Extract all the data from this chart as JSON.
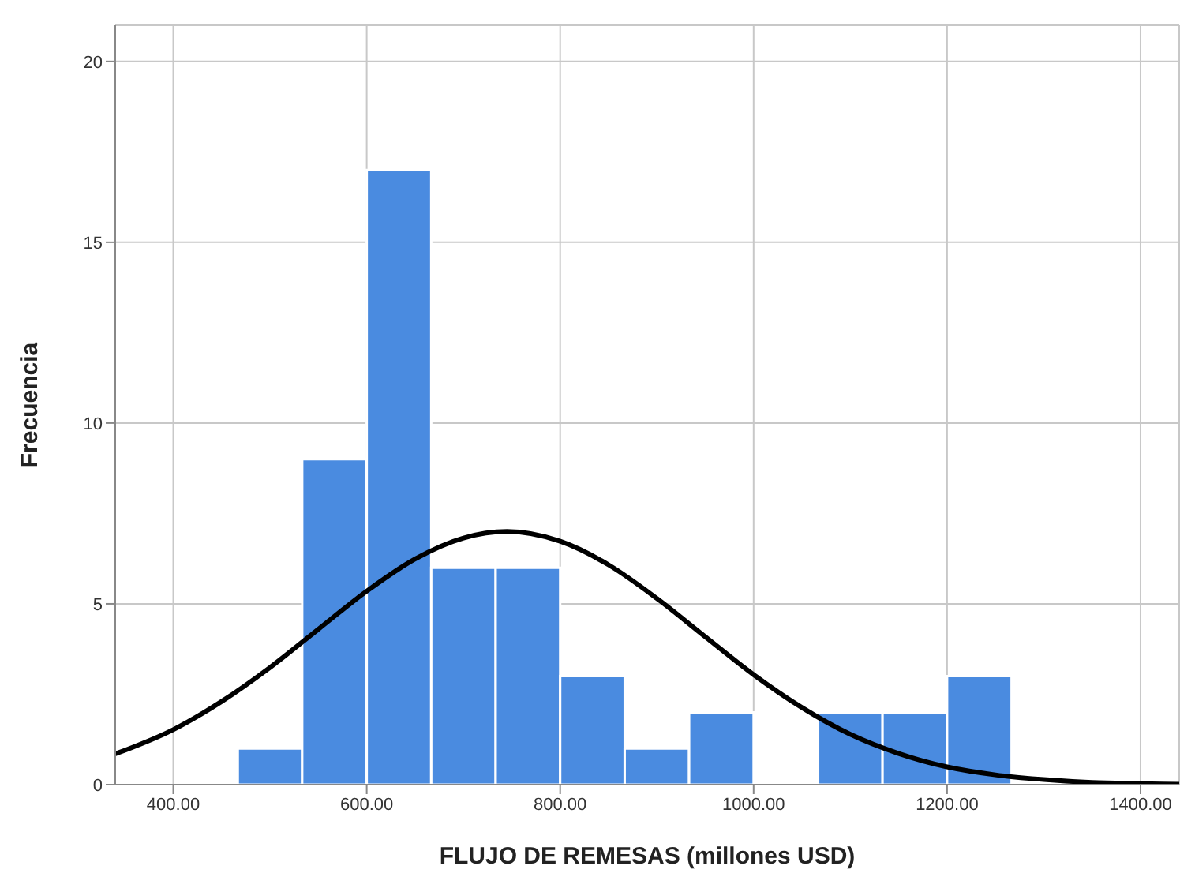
{
  "chart_data": {
    "type": "histogram",
    "xlabel": "FLUJO DE REMESAS (millones USD)",
    "ylabel": "Frecuencia",
    "xlim": [
      340,
      1440
    ],
    "ylim": [
      0,
      21
    ],
    "xticks": [
      {
        "value": 400,
        "label": "400.00"
      },
      {
        "value": 600,
        "label": "600.00"
      },
      {
        "value": 800,
        "label": "800.00"
      },
      {
        "value": 1000,
        "label": "1000.00"
      },
      {
        "value": 1200,
        "label": "1200.00"
      },
      {
        "value": 1400,
        "label": "1400.00"
      }
    ],
    "yticks": [
      0,
      5,
      10,
      15,
      20
    ],
    "grid": true,
    "series": [
      {
        "color": "#4a8be0",
        "bins": [
          466.7,
          533.3,
          600,
          666.7,
          733.3,
          800,
          866.7,
          933.3,
          1000,
          1066.7,
          1133.3,
          1200,
          1266.7
        ],
        "values": [
          1,
          9,
          17,
          6,
          6,
          3,
          1,
          2,
          0,
          2,
          2,
          3
        ]
      },
      {
        "type": "line",
        "color": "#000000",
        "x": [
          340,
          350,
          400,
          450,
          500,
          550,
          600,
          650,
          700,
          745,
          800,
          850,
          900,
          950,
          1000,
          1050,
          1100,
          1150,
          1200,
          1250,
          1300,
          1350,
          1400,
          1440
        ],
        "values": [
          0.85,
          0.95,
          1.52,
          2.3,
          3.24,
          4.3,
          5.35,
          6.24,
          6.82,
          7,
          6.73,
          6.08,
          5.15,
          4.09,
          3.04,
          2.13,
          1.39,
          0.86,
          0.49,
          0.27,
          0.14,
          0.06,
          0.03,
          0.01
        ]
      }
    ]
  }
}
